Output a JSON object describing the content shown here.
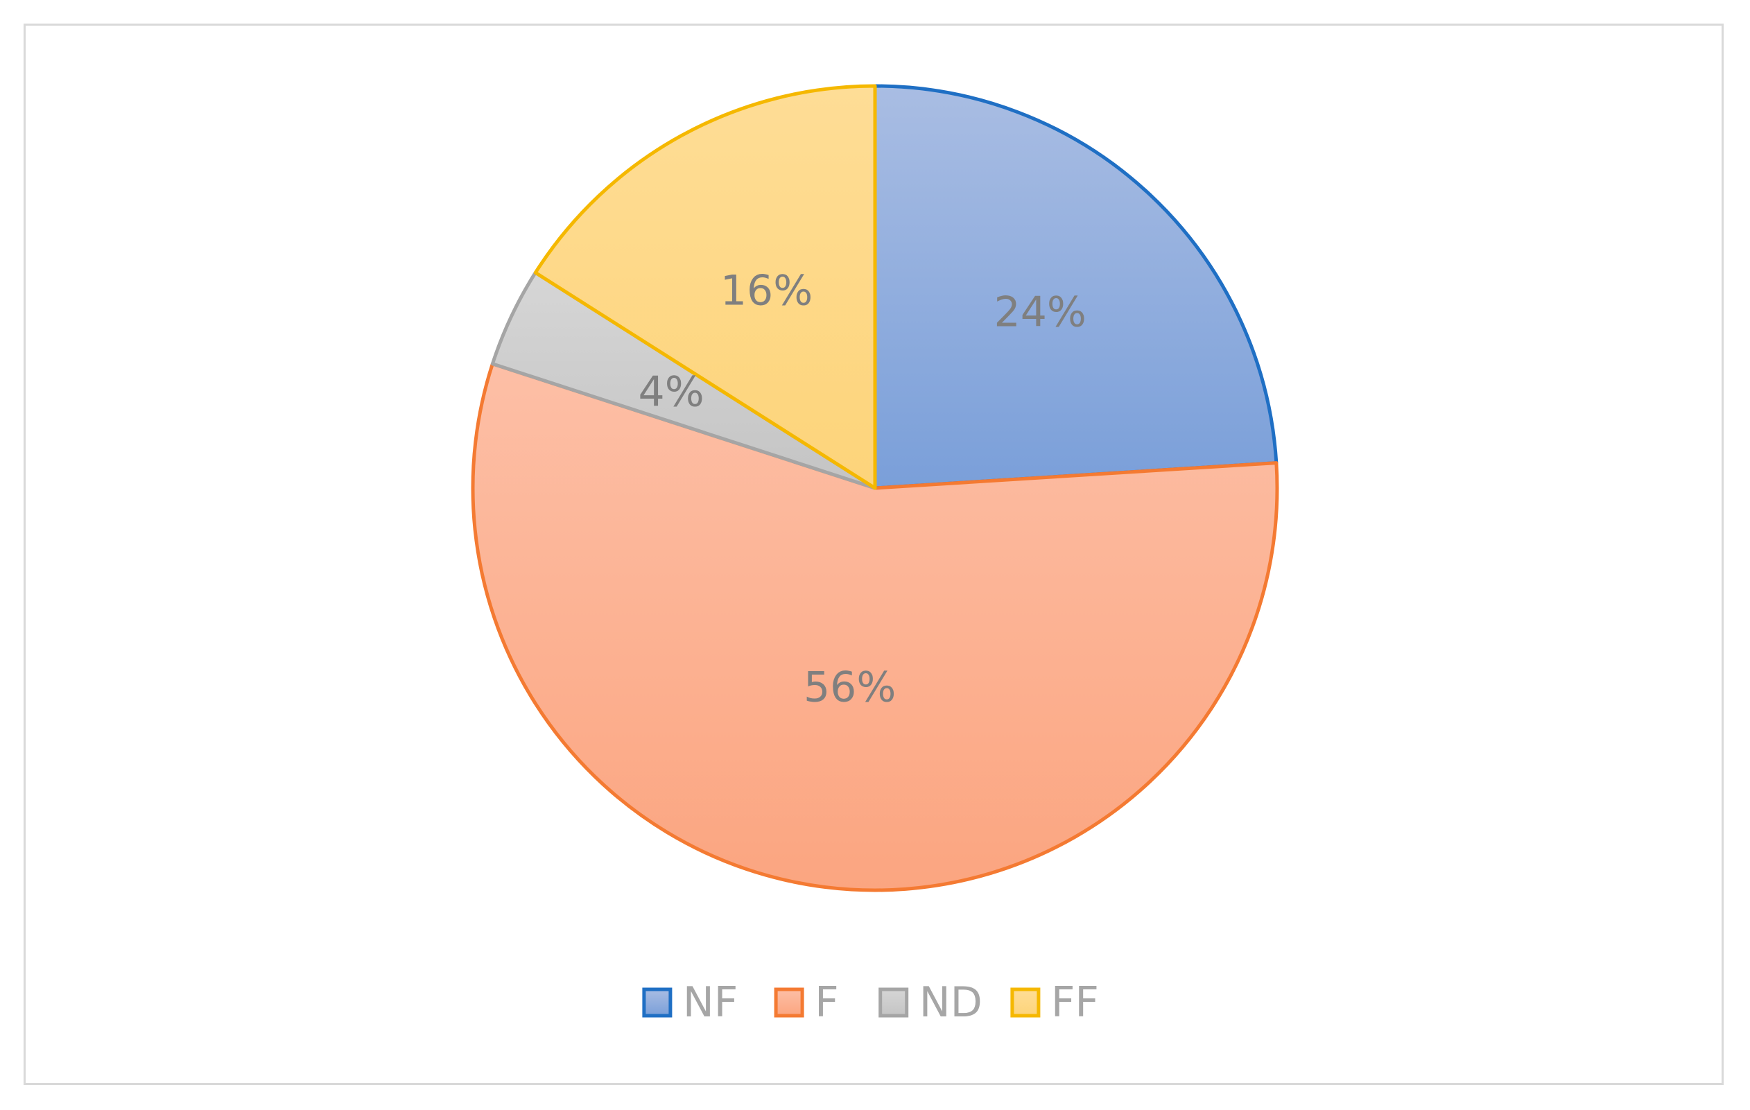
{
  "chart_data": {
    "type": "pie",
    "title": "",
    "categories": [
      "NF",
      "F",
      "ND",
      "FF"
    ],
    "values": [
      24,
      56,
      4,
      16
    ],
    "labels": [
      "24%",
      "56%",
      "4%",
      "16%"
    ],
    "fill_colors": [
      "#8eaadb",
      "#fbb597",
      "#c9c9c9",
      "#fed884"
    ],
    "edge_colors": [
      "#1f6fc4",
      "#f47a32",
      "#a5a5a5",
      "#f5b800"
    ],
    "start_angle_deg": 0,
    "direction": "clockwise",
    "legend": {
      "position": "bottom",
      "entries": [
        "NF",
        "F",
        "ND",
        "FF"
      ]
    }
  }
}
